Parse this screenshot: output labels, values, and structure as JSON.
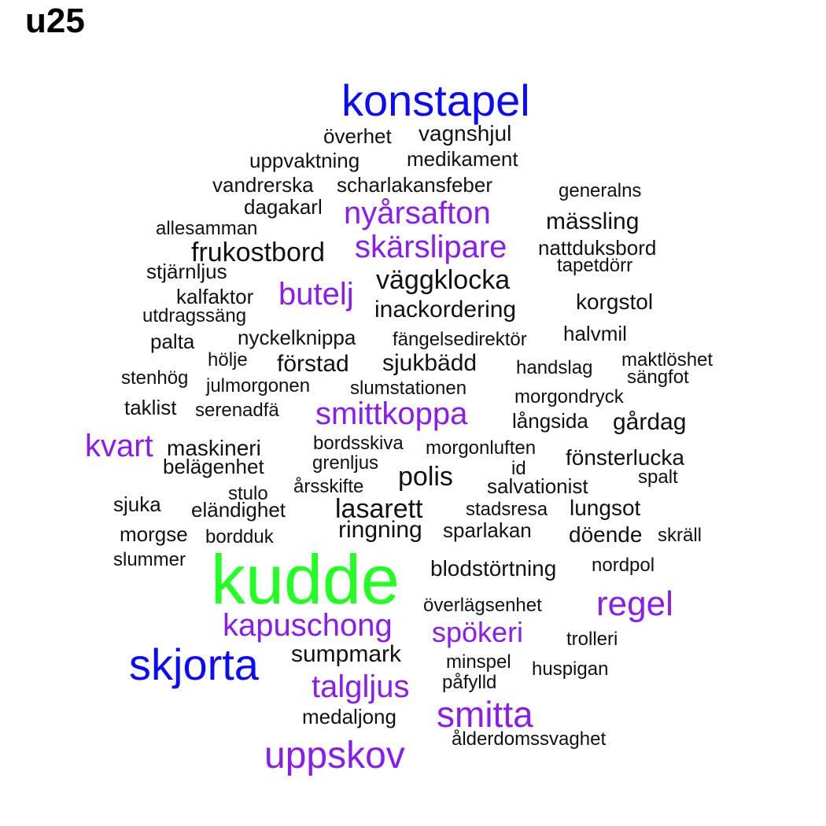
{
  "title": "u25",
  "colors": {
    "green": "#22ff22",
    "blue": "#0a0aff",
    "purple": "#8a1cf0",
    "black": "#111111"
  },
  "words": [
    {
      "text": "konstapel",
      "color": "blue"
    },
    {
      "text": "överhet",
      "color": "black"
    },
    {
      "text": "vagnshjul",
      "color": "black"
    },
    {
      "text": "uppvaktning",
      "color": "black"
    },
    {
      "text": "medikament",
      "color": "black"
    },
    {
      "text": "vandrerska",
      "color": "black"
    },
    {
      "text": "scharlakansfeber",
      "color": "black"
    },
    {
      "text": "generalns",
      "color": "black"
    },
    {
      "text": "dagakarl",
      "color": "black"
    },
    {
      "text": "nyårsafton",
      "color": "purple"
    },
    {
      "text": "allesamman",
      "color": "black"
    },
    {
      "text": "mässling",
      "color": "black"
    },
    {
      "text": "frukostbord",
      "color": "black"
    },
    {
      "text": "skärslipare",
      "color": "purple"
    },
    {
      "text": "nattduksbord",
      "color": "black"
    },
    {
      "text": "tapetdörr",
      "color": "black"
    },
    {
      "text": "stjärnljus",
      "color": "black"
    },
    {
      "text": "väggklocka",
      "color": "black"
    },
    {
      "text": "butelj",
      "color": "purple"
    },
    {
      "text": "kalfaktor",
      "color": "black"
    },
    {
      "text": "korgstol",
      "color": "black"
    },
    {
      "text": "inackordering",
      "color": "black"
    },
    {
      "text": "utdragssäng",
      "color": "black"
    },
    {
      "text": "halvmil",
      "color": "black"
    },
    {
      "text": "nyckelknippa",
      "color": "black"
    },
    {
      "text": "fängelsedirektör",
      "color": "black"
    },
    {
      "text": "palta",
      "color": "black"
    },
    {
      "text": "maktlöshet",
      "color": "black"
    },
    {
      "text": "hölje",
      "color": "black"
    },
    {
      "text": "förstad",
      "color": "black"
    },
    {
      "text": "sjukbädd",
      "color": "black"
    },
    {
      "text": "handslag",
      "color": "black"
    },
    {
      "text": "sängfot",
      "color": "black"
    },
    {
      "text": "stenhög",
      "color": "black"
    },
    {
      "text": "julmorgonen",
      "color": "black"
    },
    {
      "text": "slumstationen",
      "color": "black"
    },
    {
      "text": "morgondryck",
      "color": "black"
    },
    {
      "text": "taklist",
      "color": "black"
    },
    {
      "text": "serenadfä",
      "color": "black"
    },
    {
      "text": "smittkoppa",
      "color": "purple"
    },
    {
      "text": "långsida",
      "color": "black"
    },
    {
      "text": "gårdag",
      "color": "black"
    },
    {
      "text": "kvart",
      "color": "purple"
    },
    {
      "text": "maskineri",
      "color": "black"
    },
    {
      "text": "bordsskiva",
      "color": "black"
    },
    {
      "text": "morgonluften",
      "color": "black"
    },
    {
      "text": "fönsterlucka",
      "color": "black"
    },
    {
      "text": "belägenhet",
      "color": "black"
    },
    {
      "text": "grenljus",
      "color": "black"
    },
    {
      "text": "id",
      "color": "black"
    },
    {
      "text": "polis",
      "color": "black"
    },
    {
      "text": "spalt",
      "color": "black"
    },
    {
      "text": "årsskifte",
      "color": "black"
    },
    {
      "text": "salvationist",
      "color": "black"
    },
    {
      "text": "stulo",
      "color": "black"
    },
    {
      "text": "sjuka",
      "color": "black"
    },
    {
      "text": "eländighet",
      "color": "black"
    },
    {
      "text": "lasarett",
      "color": "black"
    },
    {
      "text": "stadsresa",
      "color": "black"
    },
    {
      "text": "lungsot",
      "color": "black"
    },
    {
      "text": "ringning",
      "color": "black"
    },
    {
      "text": "sparlakan",
      "color": "black"
    },
    {
      "text": "morgse",
      "color": "black"
    },
    {
      "text": "bordduk",
      "color": "black"
    },
    {
      "text": "döende",
      "color": "black"
    },
    {
      "text": "skräll",
      "color": "black"
    },
    {
      "text": "slummer",
      "color": "black"
    },
    {
      "text": "kudde",
      "color": "green"
    },
    {
      "text": "blodstörtning",
      "color": "black"
    },
    {
      "text": "nordpol",
      "color": "black"
    },
    {
      "text": "regel",
      "color": "purple"
    },
    {
      "text": "överlägsenhet",
      "color": "black"
    },
    {
      "text": "kapuschong",
      "color": "purple"
    },
    {
      "text": "spökeri",
      "color": "purple"
    },
    {
      "text": "trolleri",
      "color": "black"
    },
    {
      "text": "skjorta",
      "color": "blue"
    },
    {
      "text": "sumpmark",
      "color": "black"
    },
    {
      "text": "minspel",
      "color": "black"
    },
    {
      "text": "huspigan",
      "color": "black"
    },
    {
      "text": "talgljus",
      "color": "purple"
    },
    {
      "text": "påfylld",
      "color": "black"
    },
    {
      "text": "smitta",
      "color": "purple"
    },
    {
      "text": "medaljong",
      "color": "black"
    },
    {
      "text": "ålderdomssvaghet",
      "color": "black"
    },
    {
      "text": "uppskov",
      "color": "purple"
    }
  ]
}
